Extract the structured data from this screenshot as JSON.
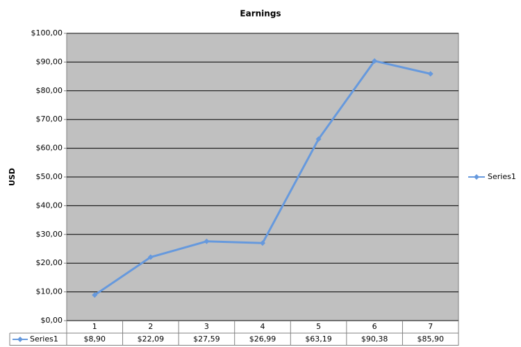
{
  "chart_data": {
    "type": "line",
    "title": "Earnings",
    "y_label": "USD",
    "categories": [
      "1",
      "2",
      "3",
      "4",
      "5",
      "6",
      "7"
    ],
    "series": [
      {
        "name": "Series1",
        "color": "#6699dd",
        "values": [
          8.9,
          22.09,
          27.59,
          26.99,
          63.19,
          90.38,
          85.9
        ],
        "value_labels": [
          "$8,90",
          "$22,09",
          "$27,59",
          "$26,99",
          "$63,19",
          "$90,38",
          "$85,90"
        ]
      }
    ],
    "ylim": [
      0,
      100
    ],
    "yticks": [
      {
        "value": 0,
        "label": "$0,00"
      },
      {
        "value": 10,
        "label": "$10,00"
      },
      {
        "value": 20,
        "label": "$20,00"
      },
      {
        "value": 30,
        "label": "$30,00"
      },
      {
        "value": 40,
        "label": "$40,00"
      },
      {
        "value": 50,
        "label": "$50,00"
      },
      {
        "value": 60,
        "label": "$60,00"
      },
      {
        "value": 70,
        "label": "$70,00"
      },
      {
        "value": 80,
        "label": "$80,00"
      },
      {
        "value": 90,
        "label": "$90,00"
      },
      {
        "value": 100,
        "label": "$100,00"
      }
    ],
    "grid": true,
    "legend": "right",
    "plot_background": "#c0c0c0"
  }
}
